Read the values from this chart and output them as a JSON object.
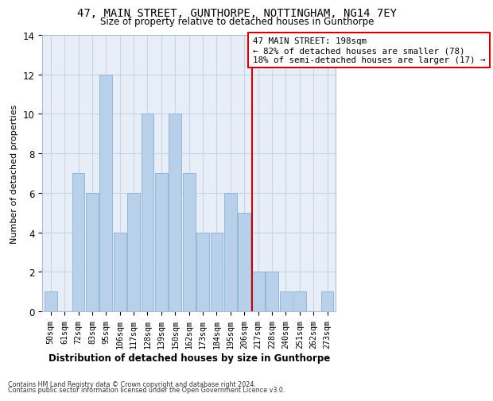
{
  "title": "47, MAIN STREET, GUNTHORPE, NOTTINGHAM, NG14 7EY",
  "subtitle": "Size of property relative to detached houses in Gunthorpe",
  "xlabel": "Distribution of detached houses by size in Gunthorpe",
  "ylabel": "Number of detached properties",
  "bar_labels": [
    "50sqm",
    "61sqm",
    "72sqm",
    "83sqm",
    "95sqm",
    "106sqm",
    "117sqm",
    "128sqm",
    "139sqm",
    "150sqm",
    "162sqm",
    "173sqm",
    "184sqm",
    "195sqm",
    "206sqm",
    "217sqm",
    "228sqm",
    "240sqm",
    "251sqm",
    "262sqm",
    "273sqm"
  ],
  "bar_values": [
    1,
    0,
    7,
    6,
    12,
    4,
    6,
    10,
    7,
    10,
    7,
    4,
    4,
    6,
    5,
    2,
    2,
    1,
    1,
    0,
    1
  ],
  "bar_color": "#b8d0ea",
  "bar_edge_color": "#93b8d8",
  "annotation_text": "47 MAIN STREET: 198sqm\n← 82% of detached houses are smaller (78)\n18% of semi-detached houses are larger (17) →",
  "vline_x_idx": 14.55,
  "vline_color": "#cc0000",
  "annotation_box_color": "#cc0000",
  "ylim": [
    0,
    14
  ],
  "yticks": [
    0,
    2,
    4,
    6,
    8,
    10,
    12,
    14
  ],
  "grid_color": "#c8d4e8",
  "bg_color": "#e8eef8",
  "footnote1": "Contains HM Land Registry data © Crown copyright and database right 2024.",
  "footnote2": "Contains public sector information licensed under the Open Government Licence v3.0."
}
